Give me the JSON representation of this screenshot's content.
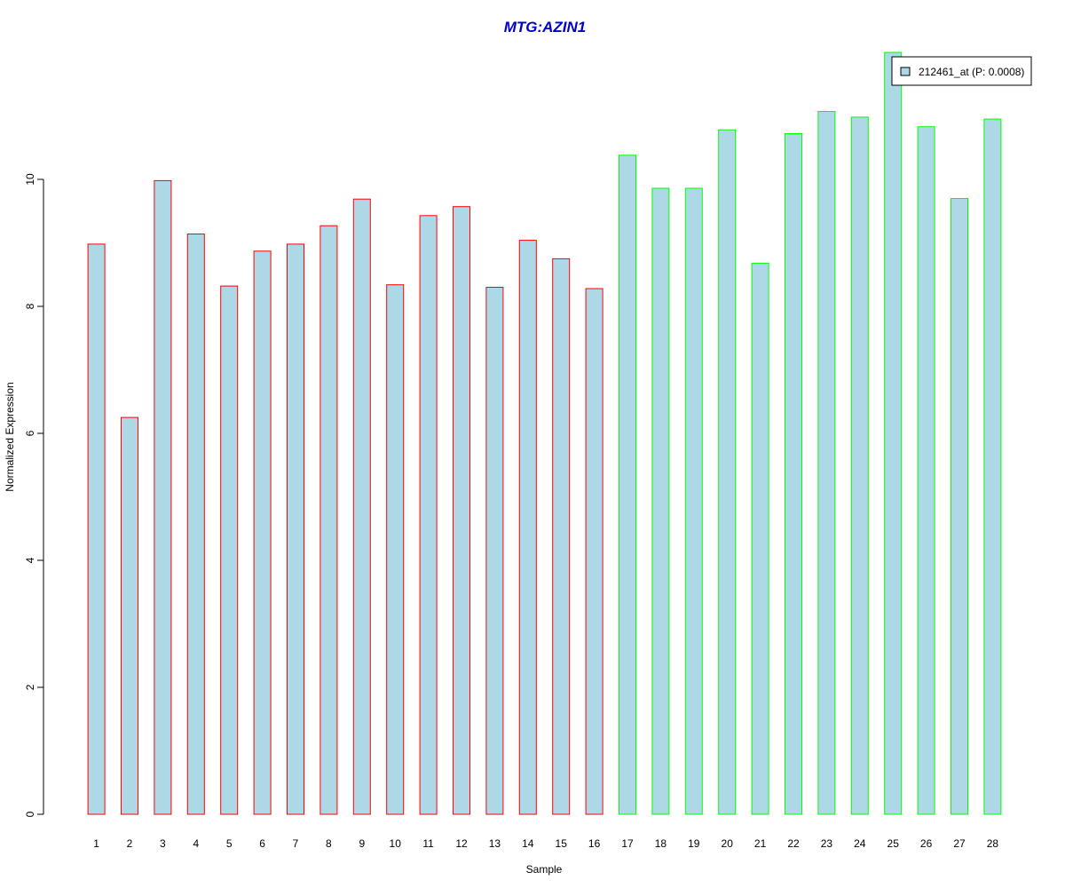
{
  "chart_data": {
    "type": "bar",
    "title": "MTG:AZIN1",
    "xlabel": "Sample",
    "ylabel": "Normalized Expression",
    "categories": [
      "1",
      "2",
      "3",
      "4",
      "5",
      "6",
      "7",
      "8",
      "9",
      "10",
      "11",
      "12",
      "13",
      "14",
      "15",
      "16",
      "17",
      "18",
      "19",
      "20",
      "21",
      "22",
      "23",
      "24",
      "25",
      "26",
      "27",
      "28"
    ],
    "values": [
      8.98,
      6.25,
      9.98,
      9.14,
      8.32,
      8.87,
      8.98,
      9.27,
      9.69,
      8.34,
      9.43,
      9.57,
      8.3,
      9.04,
      8.75,
      8.28,
      10.38,
      9.86,
      9.86,
      10.78,
      8.68,
      10.72,
      11.07,
      10.98,
      12.0,
      10.83,
      9.7,
      10.95
    ],
    "groups": [
      1,
      1,
      1,
      1,
      1,
      1,
      1,
      1,
      1,
      1,
      1,
      1,
      1,
      1,
      1,
      1,
      2,
      2,
      2,
      2,
      2,
      2,
      2,
      2,
      2,
      2,
      2,
      2
    ],
    "yticks": [
      0,
      2,
      4,
      6,
      8,
      10
    ],
    "ylim": [
      0,
      12
    ],
    "legend": {
      "label": "212461_at (P: 0.0008)",
      "placement": "top-right"
    },
    "grid": false
  },
  "colors": {
    "title": "#0000cc",
    "bar_fill": "#add8e6",
    "group1_border": "#ff0000",
    "group2_border": "#00ff00",
    "axis": "#000000"
  }
}
